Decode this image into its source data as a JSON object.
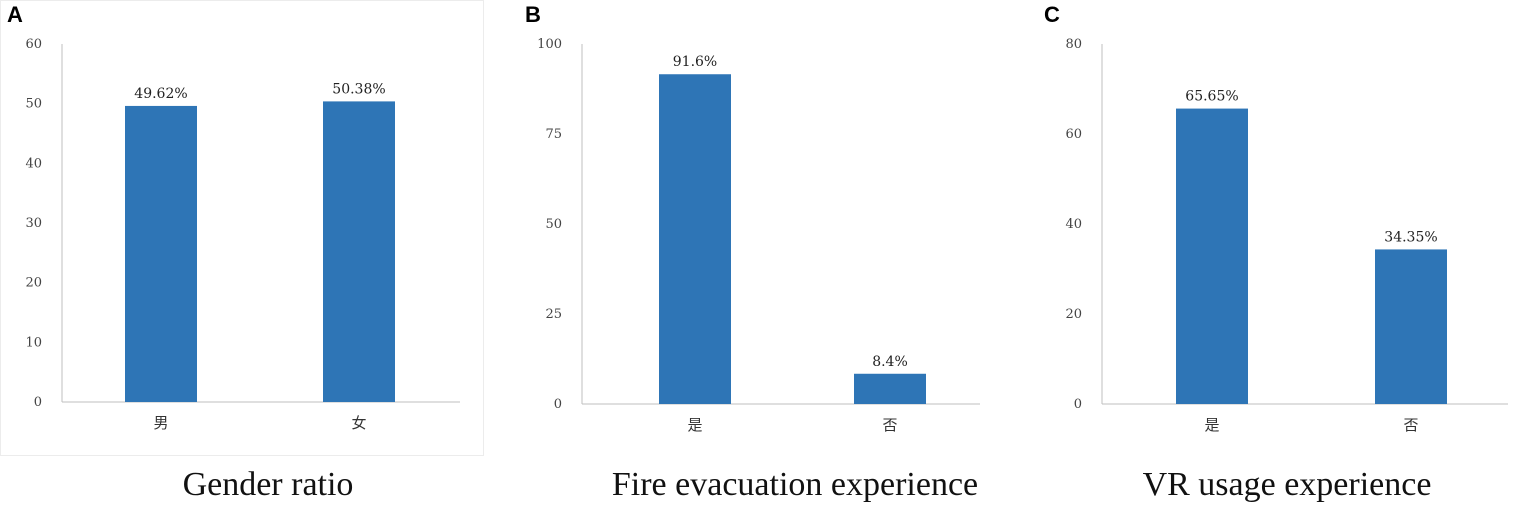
{
  "colors": {
    "bar": "#2e75b6",
    "axis": "#bfbfbf",
    "text": "#222222"
  },
  "chart_data": [
    {
      "type": "bar",
      "panel": "A",
      "title": "Gender ratio",
      "categories": [
        "男",
        "女"
      ],
      "values": [
        49.62,
        50.38
      ],
      "data_labels": [
        "49.62%",
        "50.38%"
      ],
      "yticks": [
        0,
        10,
        20,
        30,
        40,
        50,
        60
      ],
      "ylim": [
        0,
        60
      ],
      "grid": false
    },
    {
      "type": "bar",
      "panel": "B",
      "title": "Fire evacuation experience",
      "categories": [
        "是",
        "否"
      ],
      "values": [
        91.6,
        8.4
      ],
      "data_labels": [
        "91.6%",
        "8.4%"
      ],
      "yticks": [
        0,
        25,
        50,
        75,
        100
      ],
      "ylim": [
        0,
        100
      ],
      "grid": false
    },
    {
      "type": "bar",
      "panel": "C",
      "title": "VR usage experience",
      "categories": [
        "是",
        "否"
      ],
      "values": [
        65.65,
        34.35
      ],
      "data_labels": [
        "65.65%",
        "34.35%"
      ],
      "yticks": [
        0,
        20,
        40,
        60,
        80
      ],
      "ylim": [
        0,
        80
      ],
      "grid": false
    }
  ]
}
